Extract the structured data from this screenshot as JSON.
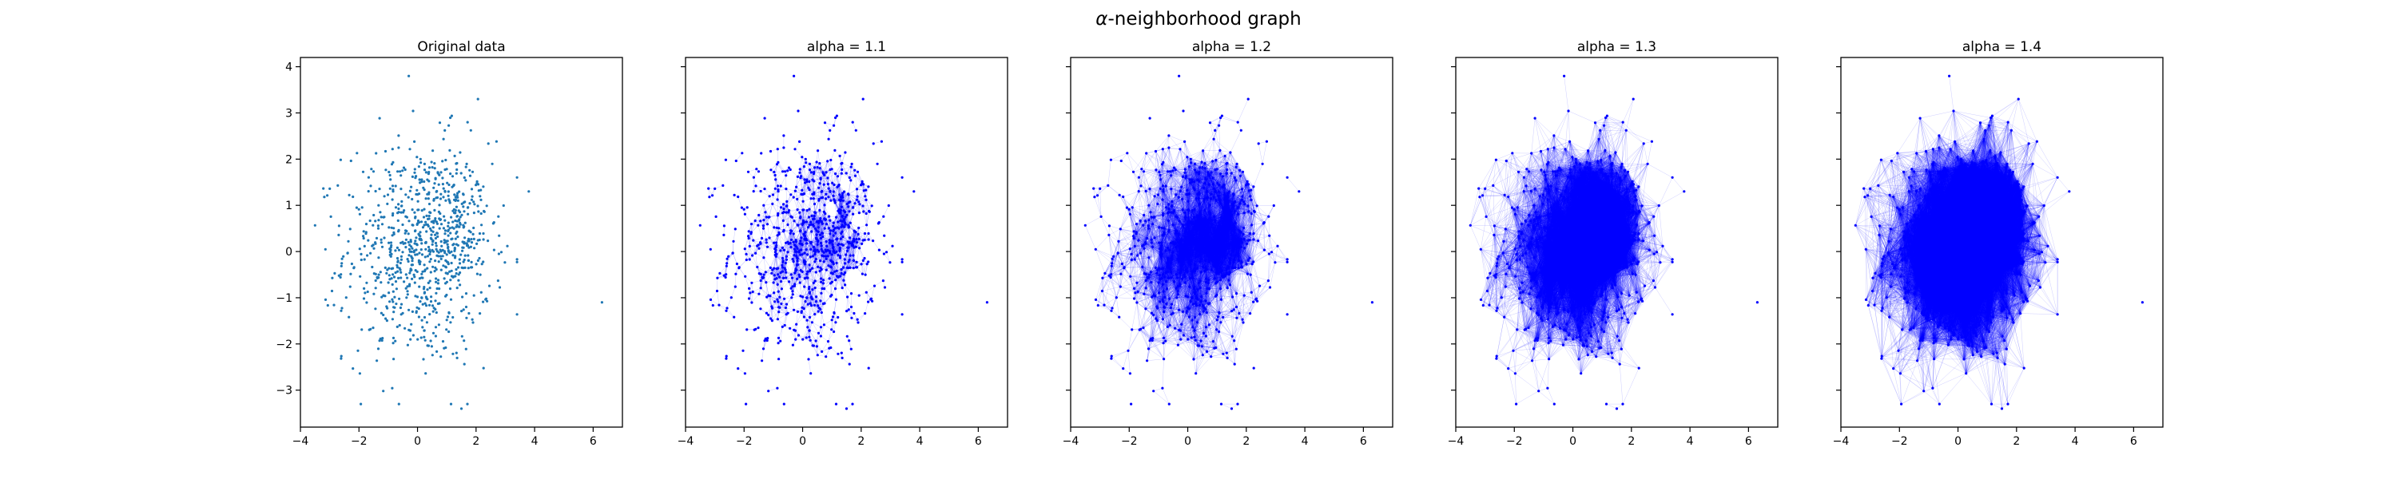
{
  "figure": {
    "title_prefix": "α",
    "title_rest": "-neighborhood graph"
  },
  "colors": {
    "original_points": "#1f77b4",
    "graph_points": "#0000ff",
    "graph_edges": "#0000ff"
  },
  "chart_data": [
    {
      "type": "scatter",
      "title": "Original data",
      "alpha": null,
      "xlim": [
        -4,
        7
      ],
      "ylim": [
        -3.8,
        4.2
      ],
      "xticks": [
        "−4",
        "−2",
        "0",
        "2",
        "4",
        "6"
      ],
      "yticks": [
        "−3",
        "−2",
        "−1",
        "0",
        "1",
        "2",
        "3",
        "4"
      ],
      "n_points": 900,
      "distribution": "2D normal cloud centered near (0, 0) with std ≈ 1.2 and a denser cluster near (1.2, 0.5); outlier at (6.3, -1.1)",
      "notable_points": [
        [
          -0.3,
          3.8
        ],
        [
          6.3,
          -1.1
        ],
        [
          3.8,
          1.3
        ],
        [
          1.5,
          -3.4
        ]
      ]
    },
    {
      "type": "scatter",
      "title": "alpha = 1.1",
      "alpha": 1.1,
      "xlim": [
        -4,
        7
      ],
      "ylim": [
        -3.8,
        4.2
      ],
      "xticks": [
        "−4",
        "−2",
        "0",
        "2",
        "4",
        "6"
      ],
      "yticks": [],
      "n_points": 900,
      "edges": "points connected when within the alpha neighborhood radius; dense hub near (1.2, 0.5)",
      "notable_points": [
        [
          -0.3,
          3.8
        ],
        [
          6.3,
          -1.1
        ],
        [
          3.8,
          1.3
        ],
        [
          1.5,
          -3.4
        ]
      ]
    },
    {
      "type": "scatter",
      "title": "alpha = 1.2",
      "alpha": 1.2,
      "xlim": [
        -4,
        7
      ],
      "ylim": [
        -3.8,
        4.2
      ],
      "xticks": [
        "−4",
        "−2",
        "0",
        "2",
        "4",
        "6"
      ],
      "yticks": [],
      "n_points": 900,
      "edges": "points connected when within the alpha neighborhood radius; dense hub near (1.2, 0.5)",
      "notable_points": [
        [
          -0.3,
          3.8
        ],
        [
          6.3,
          -1.1
        ],
        [
          3.8,
          1.3
        ],
        [
          1.5,
          -3.4
        ]
      ]
    },
    {
      "type": "scatter",
      "title": "alpha = 1.3",
      "alpha": 1.3,
      "xlim": [
        -4,
        7
      ],
      "ylim": [
        -3.8,
        4.2
      ],
      "xticks": [
        "−4",
        "−2",
        "0",
        "2",
        "4",
        "6"
      ],
      "yticks": [],
      "n_points": 900,
      "edges": "points connected when within the alpha neighborhood radius; dense hub near (1.2, 0.5)",
      "notable_points": [
        [
          -0.3,
          3.8
        ],
        [
          6.3,
          -1.1
        ],
        [
          3.8,
          1.3
        ],
        [
          1.5,
          -3.4
        ]
      ]
    },
    {
      "type": "scatter",
      "title": "alpha = 1.4",
      "alpha": 1.4,
      "xlim": [
        -4,
        7
      ],
      "ylim": [
        -3.8,
        4.2
      ],
      "xticks": [
        "−4",
        "−2",
        "0",
        "2",
        "4",
        "6"
      ],
      "yticks": [],
      "n_points": 900,
      "edges": "points connected when within the alpha neighborhood radius; dense hub near (1.2, 0.5)",
      "notable_points": [
        [
          -0.3,
          3.8
        ],
        [
          6.3,
          -1.1
        ],
        [
          3.8,
          1.3
        ],
        [
          1.5,
          -3.4
        ]
      ]
    }
  ]
}
